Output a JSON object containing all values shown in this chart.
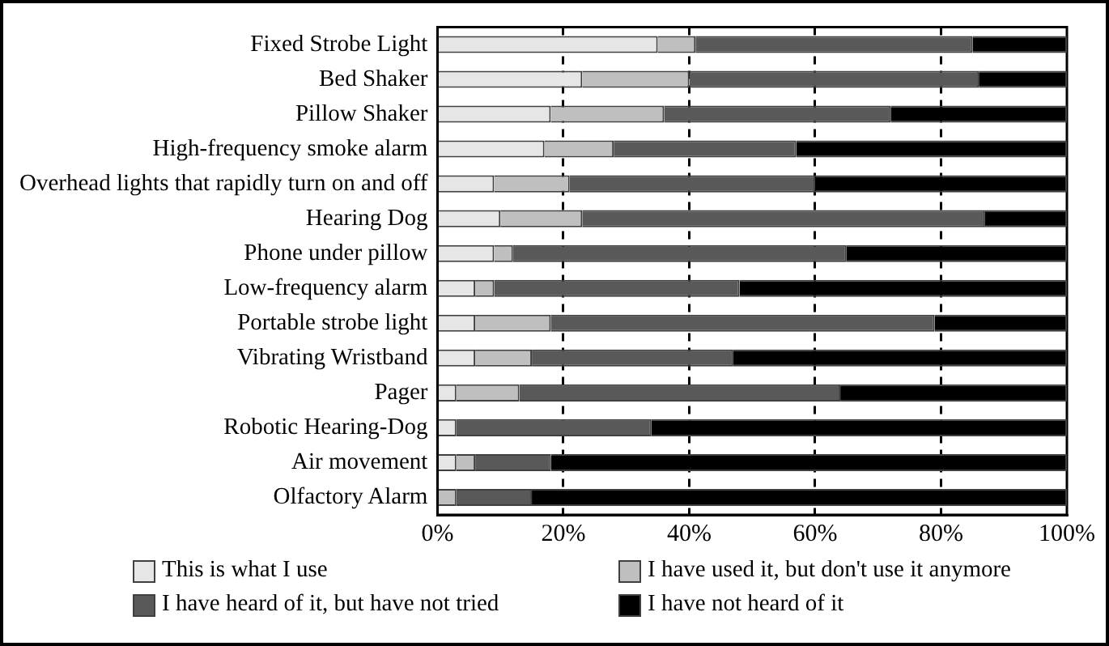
{
  "chart_data": {
    "type": "bar",
    "orientation": "horizontal",
    "stacked": true,
    "grid": "x",
    "legend": "bottom",
    "categories": [
      "Fixed Strobe Light",
      "Bed Shaker",
      "Pillow Shaker",
      "High-frequency smoke alarm",
      "Overhead lights that rapidly turn on and off",
      "Hearing Dog",
      "Phone under pillow",
      "Low-frequency alarm",
      "Portable strobe light",
      "Vibrating Wristband",
      "Pager",
      "Robotic Hearing-Dog",
      "Air movement",
      "Olfactory Alarm"
    ],
    "series": [
      {
        "name": "This is what I use",
        "color": "#e6e6e6",
        "values": [
          35,
          23,
          18,
          17,
          9,
          10,
          9,
          6,
          6,
          6,
          3,
          3,
          3,
          0
        ]
      },
      {
        "name": "I have used it, but don't use it anymore",
        "color": "#bfbfbf",
        "values": [
          6,
          17,
          18,
          11,
          12,
          13,
          3,
          3,
          12,
          9,
          10,
          0,
          3,
          3
        ]
      },
      {
        "name": "I have heard of it, but have not tried",
        "color": "#595959",
        "values": [
          44,
          46,
          36,
          29,
          39,
          64,
          53,
          39,
          61,
          32,
          51,
          31,
          12,
          12
        ]
      },
      {
        "name": "I have not heard of it",
        "color": "#000000",
        "values": [
          15,
          14,
          28,
          43,
          40,
          13,
          35,
          52,
          21,
          53,
          36,
          66,
          82,
          85
        ]
      }
    ],
    "xlim": [
      0,
      100
    ],
    "xticks": [
      {
        "value": 0,
        "label": "0%"
      },
      {
        "value": 20,
        "label": "20%"
      },
      {
        "value": 40,
        "label": "40%"
      },
      {
        "value": 60,
        "label": "60%"
      },
      {
        "value": 80,
        "label": "80%"
      },
      {
        "value": 100,
        "label": "100%"
      }
    ]
  }
}
